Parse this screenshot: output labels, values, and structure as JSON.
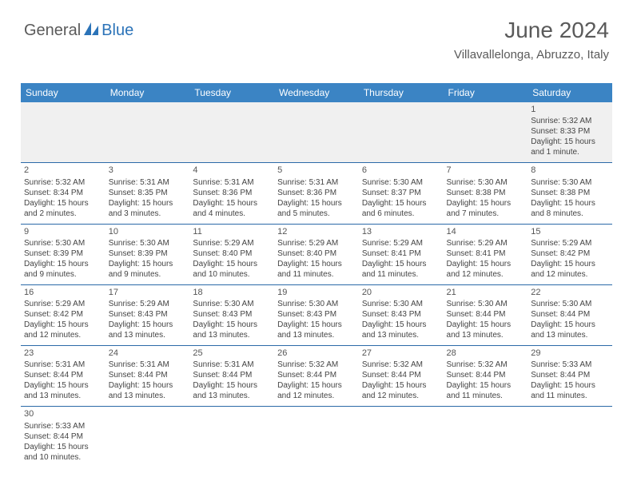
{
  "logo": {
    "part1": "General",
    "part2": "Blue"
  },
  "header": {
    "month": "June 2024",
    "location": "Villavallelonga, Abruzzo, Italy"
  },
  "colors": {
    "header_bg": "#3b84c4",
    "header_text": "#ffffff",
    "border": "#2b6aa8",
    "body_text": "#444444",
    "title_text": "#5a5a5a",
    "logo_blue": "#2b73b8"
  },
  "weekdays": [
    "Sunday",
    "Monday",
    "Tuesday",
    "Wednesday",
    "Thursday",
    "Friday",
    "Saturday"
  ],
  "weeks": [
    [
      null,
      null,
      null,
      null,
      null,
      null,
      {
        "n": "1",
        "sr": "Sunrise: 5:32 AM",
        "ss": "Sunset: 8:33 PM",
        "dl": "Daylight: 15 hours and 1 minute."
      }
    ],
    [
      {
        "n": "2",
        "sr": "Sunrise: 5:32 AM",
        "ss": "Sunset: 8:34 PM",
        "dl": "Daylight: 15 hours and 2 minutes."
      },
      {
        "n": "3",
        "sr": "Sunrise: 5:31 AM",
        "ss": "Sunset: 8:35 PM",
        "dl": "Daylight: 15 hours and 3 minutes."
      },
      {
        "n": "4",
        "sr": "Sunrise: 5:31 AM",
        "ss": "Sunset: 8:36 PM",
        "dl": "Daylight: 15 hours and 4 minutes."
      },
      {
        "n": "5",
        "sr": "Sunrise: 5:31 AM",
        "ss": "Sunset: 8:36 PM",
        "dl": "Daylight: 15 hours and 5 minutes."
      },
      {
        "n": "6",
        "sr": "Sunrise: 5:30 AM",
        "ss": "Sunset: 8:37 PM",
        "dl": "Daylight: 15 hours and 6 minutes."
      },
      {
        "n": "7",
        "sr": "Sunrise: 5:30 AM",
        "ss": "Sunset: 8:38 PM",
        "dl": "Daylight: 15 hours and 7 minutes."
      },
      {
        "n": "8",
        "sr": "Sunrise: 5:30 AM",
        "ss": "Sunset: 8:38 PM",
        "dl": "Daylight: 15 hours and 8 minutes."
      }
    ],
    [
      {
        "n": "9",
        "sr": "Sunrise: 5:30 AM",
        "ss": "Sunset: 8:39 PM",
        "dl": "Daylight: 15 hours and 9 minutes."
      },
      {
        "n": "10",
        "sr": "Sunrise: 5:30 AM",
        "ss": "Sunset: 8:39 PM",
        "dl": "Daylight: 15 hours and 9 minutes."
      },
      {
        "n": "11",
        "sr": "Sunrise: 5:29 AM",
        "ss": "Sunset: 8:40 PM",
        "dl": "Daylight: 15 hours and 10 minutes."
      },
      {
        "n": "12",
        "sr": "Sunrise: 5:29 AM",
        "ss": "Sunset: 8:40 PM",
        "dl": "Daylight: 15 hours and 11 minutes."
      },
      {
        "n": "13",
        "sr": "Sunrise: 5:29 AM",
        "ss": "Sunset: 8:41 PM",
        "dl": "Daylight: 15 hours and 11 minutes."
      },
      {
        "n": "14",
        "sr": "Sunrise: 5:29 AM",
        "ss": "Sunset: 8:41 PM",
        "dl": "Daylight: 15 hours and 12 minutes."
      },
      {
        "n": "15",
        "sr": "Sunrise: 5:29 AM",
        "ss": "Sunset: 8:42 PM",
        "dl": "Daylight: 15 hours and 12 minutes."
      }
    ],
    [
      {
        "n": "16",
        "sr": "Sunrise: 5:29 AM",
        "ss": "Sunset: 8:42 PM",
        "dl": "Daylight: 15 hours and 12 minutes."
      },
      {
        "n": "17",
        "sr": "Sunrise: 5:29 AM",
        "ss": "Sunset: 8:43 PM",
        "dl": "Daylight: 15 hours and 13 minutes."
      },
      {
        "n": "18",
        "sr": "Sunrise: 5:30 AM",
        "ss": "Sunset: 8:43 PM",
        "dl": "Daylight: 15 hours and 13 minutes."
      },
      {
        "n": "19",
        "sr": "Sunrise: 5:30 AM",
        "ss": "Sunset: 8:43 PM",
        "dl": "Daylight: 15 hours and 13 minutes."
      },
      {
        "n": "20",
        "sr": "Sunrise: 5:30 AM",
        "ss": "Sunset: 8:43 PM",
        "dl": "Daylight: 15 hours and 13 minutes."
      },
      {
        "n": "21",
        "sr": "Sunrise: 5:30 AM",
        "ss": "Sunset: 8:44 PM",
        "dl": "Daylight: 15 hours and 13 minutes."
      },
      {
        "n": "22",
        "sr": "Sunrise: 5:30 AM",
        "ss": "Sunset: 8:44 PM",
        "dl": "Daylight: 15 hours and 13 minutes."
      }
    ],
    [
      {
        "n": "23",
        "sr": "Sunrise: 5:31 AM",
        "ss": "Sunset: 8:44 PM",
        "dl": "Daylight: 15 hours and 13 minutes."
      },
      {
        "n": "24",
        "sr": "Sunrise: 5:31 AM",
        "ss": "Sunset: 8:44 PM",
        "dl": "Daylight: 15 hours and 13 minutes."
      },
      {
        "n": "25",
        "sr": "Sunrise: 5:31 AM",
        "ss": "Sunset: 8:44 PM",
        "dl": "Daylight: 15 hours and 13 minutes."
      },
      {
        "n": "26",
        "sr": "Sunrise: 5:32 AM",
        "ss": "Sunset: 8:44 PM",
        "dl": "Daylight: 15 hours and 12 minutes."
      },
      {
        "n": "27",
        "sr": "Sunrise: 5:32 AM",
        "ss": "Sunset: 8:44 PM",
        "dl": "Daylight: 15 hours and 12 minutes."
      },
      {
        "n": "28",
        "sr": "Sunrise: 5:32 AM",
        "ss": "Sunset: 8:44 PM",
        "dl": "Daylight: 15 hours and 11 minutes."
      },
      {
        "n": "29",
        "sr": "Sunrise: 5:33 AM",
        "ss": "Sunset: 8:44 PM",
        "dl": "Daylight: 15 hours and 11 minutes."
      }
    ],
    [
      {
        "n": "30",
        "sr": "Sunrise: 5:33 AM",
        "ss": "Sunset: 8:44 PM",
        "dl": "Daylight: 15 hours and 10 minutes."
      },
      null,
      null,
      null,
      null,
      null,
      null
    ]
  ]
}
